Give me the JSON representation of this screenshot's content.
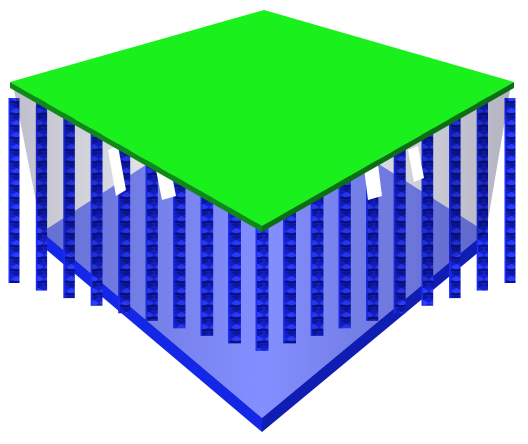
{
  "scene": {
    "colors": {
      "background": "#ffffff",
      "top_plate": "#19f01c",
      "top_plate_edge_front": "#0b6e12",
      "top_plate_edge_left": "#0f8a18",
      "pillar_bright": "#1a2cff",
      "pillar_mid": "#1420cc",
      "pillar_dark": "#0a1380",
      "pillar_deep": "#060b52",
      "base_left": "#1527e6",
      "base_right": "#101db3",
      "base_top": "#1e33ff"
    }
  }
}
